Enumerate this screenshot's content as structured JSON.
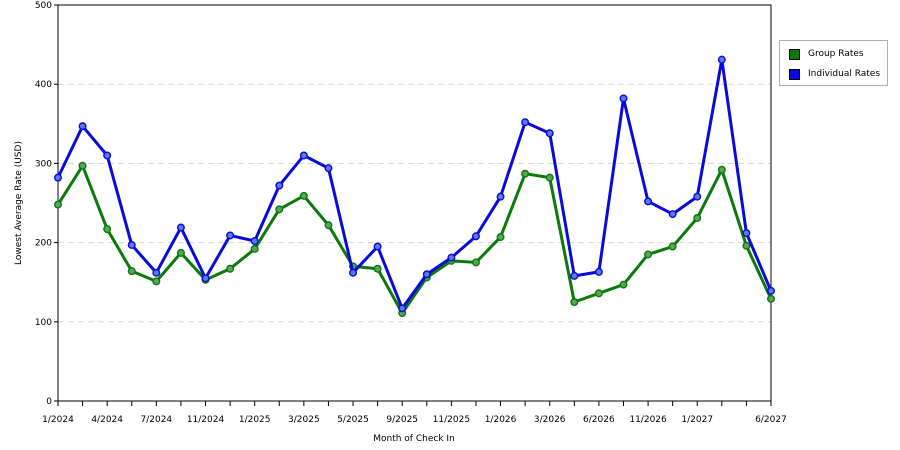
{
  "chart_data": {
    "type": "line",
    "ylabel": "Lowest Average Rate (USD)",
    "xlabel": "Month of Check In",
    "ylim": [
      0,
      500
    ],
    "yticks": [
      0,
      100,
      200,
      300,
      400,
      500
    ],
    "grid": true,
    "legend_position": "right",
    "x_tick_labels": [
      "1/2024",
      "4/2024",
      "7/2024",
      "11/2024",
      "1/2025",
      "3/2025",
      "5/2025",
      "9/2025",
      "11/2025",
      "1/2026",
      "3/2026",
      "6/2026",
      "11/2026",
      "1/2027",
      "6/2027"
    ],
    "series": [
      {
        "name": "Group Rates",
        "color": "#0a7a0a",
        "marker_color": "#5aa45a",
        "values": [
          248,
          297,
          217,
          164,
          151,
          187,
          153,
          167,
          192,
          242,
          259,
          222,
          170,
          167,
          111,
          156,
          177,
          175,
          207,
          287,
          282,
          125,
          136,
          147,
          185,
          195,
          231,
          292,
          196,
          129
        ]
      },
      {
        "name": "Individual Rates",
        "color": "#0a0adc",
        "marker_color": "#5a7ae0",
        "values": [
          282,
          347,
          310,
          197,
          162,
          219,
          155,
          209,
          202,
          272,
          310,
          294,
          162,
          195,
          117,
          160,
          181,
          208,
          258,
          352,
          338,
          158,
          163,
          382,
          252,
          236,
          258,
          431,
          212,
          139
        ]
      }
    ]
  }
}
